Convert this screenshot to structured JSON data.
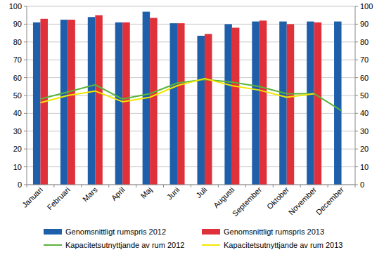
{
  "chart_data": {
    "type": "bar",
    "categories": [
      "Januari",
      "Februari",
      "Mars",
      "April",
      "Maj",
      "Juni",
      "Juli",
      "Augusti",
      "September",
      "Oktober",
      "November",
      "December"
    ],
    "series": [
      {
        "name": "Genomsnittligt rumspris 2012",
        "type": "bar",
        "color": "#1f5faa",
        "values": [
          91,
          92.5,
          94,
          91,
          97,
          90.5,
          83.5,
          90,
          91.5,
          91.5,
          91.5,
          91.5
        ]
      },
      {
        "name": "Genomsnittligt rumspris 2013",
        "type": "bar",
        "color": "#e0303a",
        "values": [
          93,
          92.5,
          95,
          91,
          93.5,
          90.5,
          84.5,
          88,
          92,
          90,
          91,
          null
        ]
      },
      {
        "name": "Kapacitetsutnyttjande av rum 2012",
        "type": "line",
        "axis": "y2",
        "color": "#5ab43c",
        "values": [
          48,
          52,
          56,
          48,
          51,
          57,
          59,
          57.5,
          55,
          51,
          51,
          41.5
        ]
      },
      {
        "name": "Kapacitetsutnyttjande av rum 2013",
        "type": "line",
        "axis": "y2",
        "color": "#f2e600",
        "values": [
          46,
          50,
          52.5,
          46.5,
          49,
          55.5,
          59.5,
          55.5,
          53,
          49,
          51,
          null
        ]
      }
    ],
    "ylim": [
      0,
      100
    ],
    "yticks": [
      0,
      10,
      20,
      30,
      40,
      50,
      60,
      70,
      80,
      90,
      100
    ],
    "y2lim": [
      0,
      100
    ],
    "y2ticks": [
      0,
      10,
      20,
      30,
      40,
      50,
      60,
      70,
      80,
      90,
      100
    ],
    "grid": true,
    "legend": "bottom"
  }
}
